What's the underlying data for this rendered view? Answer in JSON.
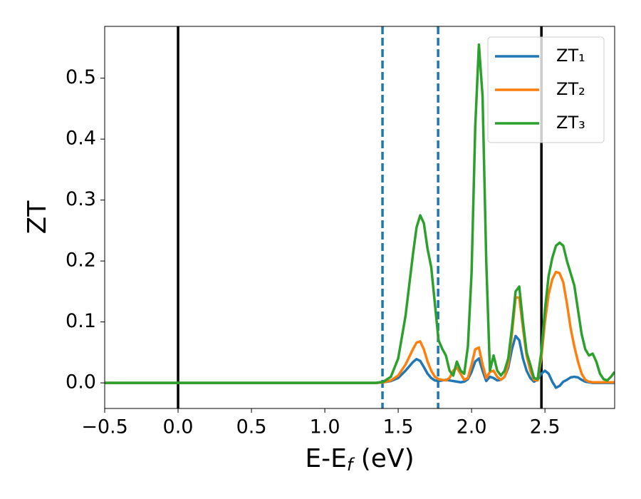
{
  "chart_data": {
    "type": "line",
    "xlabel": [
      "E-E",
      "f",
      " (eV)"
    ],
    "ylabel": "ZT",
    "x": [
      -0.5,
      0.0,
      0.5,
      1.0,
      1.3,
      1.35,
      1.4,
      1.45,
      1.5,
      1.55,
      1.6,
      1.625,
      1.65,
      1.675,
      1.7,
      1.725,
      1.75,
      1.775,
      1.8,
      1.825,
      1.85,
      1.875,
      1.9,
      1.925,
      1.95,
      1.975,
      2.0,
      2.025,
      2.05,
      2.075,
      2.1,
      2.125,
      2.15,
      2.175,
      2.2,
      2.225,
      2.25,
      2.275,
      2.3,
      2.325,
      2.35,
      2.375,
      2.4,
      2.425,
      2.45,
      2.475,
      2.5,
      2.525,
      2.55,
      2.575,
      2.6,
      2.625,
      2.65,
      2.675,
      2.7,
      2.725,
      2.75,
      2.775,
      2.8,
      2.825,
      2.85,
      2.875,
      2.9,
      2.925,
      2.95,
      2.975
    ],
    "series": [
      {
        "name": "ZT₁",
        "color": "#1f77b4",
        "values": [
          0,
          0,
          0,
          0,
          0,
          0,
          0.001,
          0.003,
          0.008,
          0.02,
          0.034,
          0.039,
          0.036,
          0.026,
          0.015,
          0.008,
          0.004,
          0.003,
          0.004,
          0.005,
          0.004,
          0.003,
          0.002,
          0.001,
          0.002,
          0.006,
          0.018,
          0.035,
          0.04,
          0.02,
          0.003,
          0.01,
          0.008,
          0.004,
          0.005,
          0.01,
          0.025,
          0.055,
          0.077,
          0.07,
          0.04,
          0.02,
          0.008,
          0.002,
          0.005,
          0.015,
          0.02,
          0.015,
          0.002,
          -0.008,
          -0.005,
          0.002,
          0.005,
          0.009,
          0.01,
          0.009,
          0.005,
          0.002,
          0.001,
          0,
          0,
          0,
          0,
          0,
          0,
          0
        ]
      },
      {
        "name": "ZT₂",
        "color": "#ff7f0e",
        "values": [
          0,
          0,
          0,
          0,
          0,
          0,
          0.001,
          0.004,
          0.012,
          0.03,
          0.055,
          0.066,
          0.068,
          0.055,
          0.035,
          0.02,
          0.01,
          0.006,
          0.005,
          0.004,
          0.008,
          0.02,
          0.025,
          0.015,
          0.005,
          0.008,
          0.03,
          0.055,
          0.058,
          0.03,
          0.008,
          0.018,
          0.02,
          0.01,
          0.005,
          0.01,
          0.03,
          0.08,
          0.14,
          0.14,
          0.09,
          0.045,
          0.02,
          0.005,
          0.004,
          0.04,
          0.1,
          0.145,
          0.17,
          0.182,
          0.18,
          0.165,
          0.13,
          0.09,
          0.06,
          0.035,
          0.015,
          0.005,
          0.002,
          0.001,
          0.001,
          0.001,
          0.001,
          0.001,
          0.001,
          0.001
        ]
      },
      {
        "name": "ZT₃",
        "color": "#2ca02c",
        "values": [
          0,
          0,
          0,
          0,
          0,
          0,
          0.002,
          0.01,
          0.04,
          0.11,
          0.21,
          0.255,
          0.275,
          0.262,
          0.22,
          0.19,
          0.13,
          0.07,
          0.056,
          0.045,
          0.02,
          0.012,
          0.035,
          0.02,
          0.015,
          0.06,
          0.18,
          0.42,
          0.555,
          0.47,
          0.2,
          0.02,
          0.045,
          0.02,
          0.012,
          0.02,
          0.04,
          0.09,
          0.15,
          0.158,
          0.1,
          0.05,
          0.03,
          0.008,
          0.006,
          0.05,
          0.12,
          0.175,
          0.205,
          0.225,
          0.23,
          0.225,
          0.2,
          0.18,
          0.16,
          0.12,
          0.08,
          0.055,
          0.045,
          0.048,
          0.035,
          0.015,
          0.006,
          0.004,
          0.01,
          0.018
        ]
      }
    ],
    "vlines": [
      {
        "x": 0,
        "color": "#000000",
        "dashed": false
      },
      {
        "x": 1.393,
        "color": "#1f77b4",
        "dashed": true
      },
      {
        "x": 1.772,
        "color": "#1f77b4",
        "dashed": true
      },
      {
        "x": 2.476,
        "color": "#000000",
        "dashed": false
      }
    ],
    "xlim": [
      -0.5,
      2.975
    ],
    "ylim": [
      -0.042,
      0.585
    ],
    "xticks": [
      {
        "value": -0.5,
        "label": "−0.5"
      },
      {
        "value": 0,
        "label": "0.0"
      },
      0.5,
      {
        "value": 1,
        "label": "1.0"
      },
      1.5,
      {
        "value": 2,
        "label": "2.0"
      },
      2.5
    ],
    "yticks": [
      {
        "value": 0,
        "label": "0.0"
      },
      0.1,
      0.2,
      0.3,
      0.4,
      0.5
    ],
    "grid": false,
    "legend": "upper right"
  }
}
